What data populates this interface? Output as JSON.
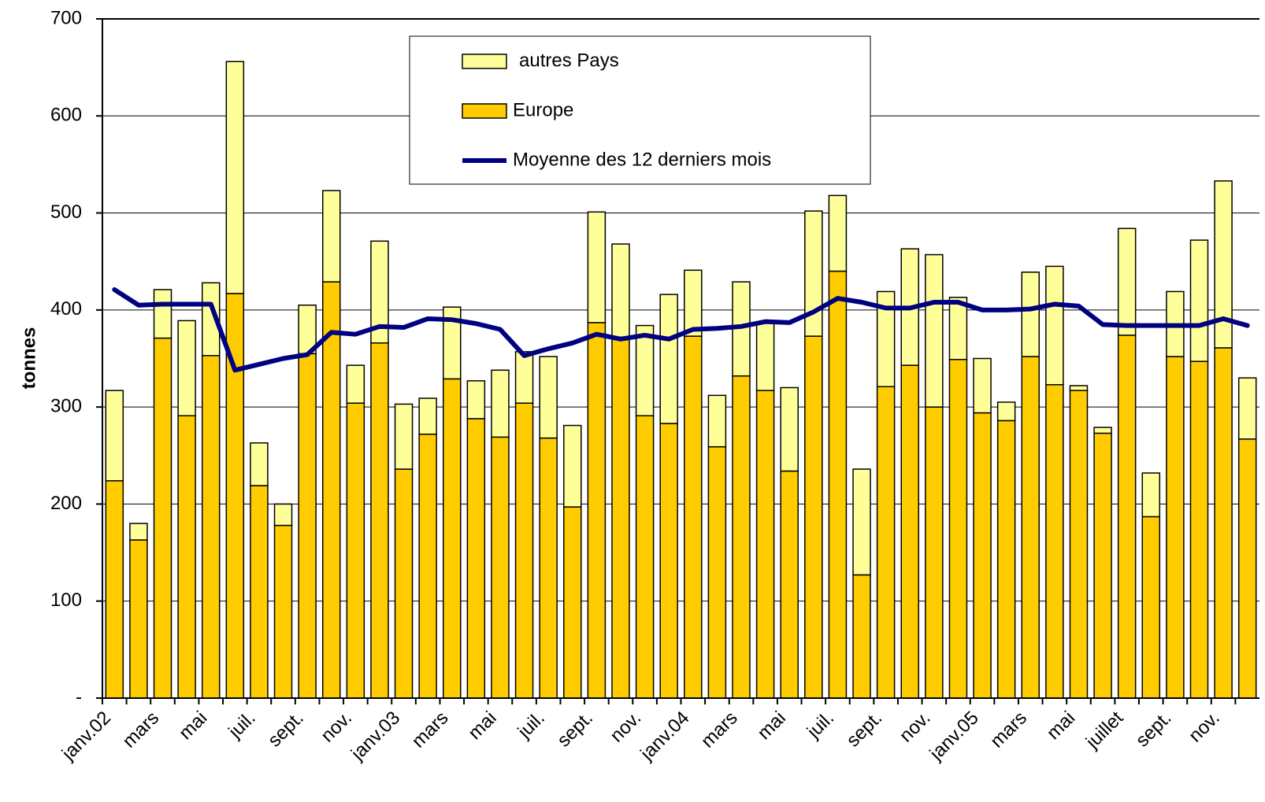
{
  "chart_data": {
    "type": "bar",
    "y_axis_label": "tonnes",
    "categories": [
      "janv.02",
      null,
      "mars",
      null,
      "mai",
      null,
      "juil.",
      null,
      "sept.",
      null,
      "nov.",
      null,
      "janv.03",
      null,
      "mars",
      null,
      "mai",
      null,
      "juil.",
      null,
      "sept.",
      null,
      "nov.",
      null,
      "janv.04",
      null,
      "mars",
      null,
      "mai",
      null,
      "juil.",
      null,
      "sept.",
      null,
      "nov.",
      null,
      "janv.05",
      null,
      "mars",
      null,
      "mai",
      null,
      "juillet",
      null,
      "sept.",
      null,
      "nov.",
      null
    ],
    "series": [
      {
        "name": "autres Pays",
        "type": "bar",
        "color": "#ffff99",
        "values": [
          93,
          17,
          50,
          98,
          75,
          239,
          44,
          22,
          50,
          94,
          39,
          105,
          67,
          37,
          74,
          39,
          69,
          53,
          84,
          84,
          114,
          96,
          93,
          133,
          68,
          53,
          97,
          70,
          86,
          129,
          78,
          109,
          98,
          120,
          157,
          64,
          56,
          19,
          87,
          122,
          5,
          6,
          110,
          45,
          67,
          125,
          172,
          63
        ]
      },
      {
        "name": "Europe",
        "type": "bar",
        "color": "#ffcc00",
        "values": [
          224,
          163,
          371,
          291,
          353,
          417,
          219,
          178,
          355,
          429,
          304,
          366,
          236,
          272,
          329,
          288,
          269,
          304,
          268,
          197,
          387,
          372,
          291,
          283,
          373,
          259,
          332,
          317,
          234,
          373,
          440,
          127,
          321,
          343,
          300,
          349,
          294,
          286,
          352,
          323,
          317,
          273,
          374,
          187,
          352,
          347,
          361,
          267
        ]
      },
      {
        "name": "Moyenne des 12 derniers mois",
        "type": "line",
        "color": "#000080",
        "values": [
          421,
          405,
          406,
          406,
          406,
          338,
          344,
          350,
          354,
          377,
          375,
          383,
          382,
          391,
          390,
          386,
          380,
          353,
          360,
          366,
          375,
          370,
          374,
          370,
          380,
          381,
          383,
          388,
          387,
          398,
          412,
          408,
          402,
          402,
          408,
          408,
          400,
          400,
          401,
          406,
          404,
          385,
          384,
          384,
          384,
          384,
          391,
          384
        ]
      }
    ],
    "ylim": [
      0,
      700
    ],
    "yticks": [
      {
        "value": 0,
        "label": "-"
      },
      100,
      200,
      300,
      400,
      500,
      600,
      700
    ],
    "grid": true
  }
}
